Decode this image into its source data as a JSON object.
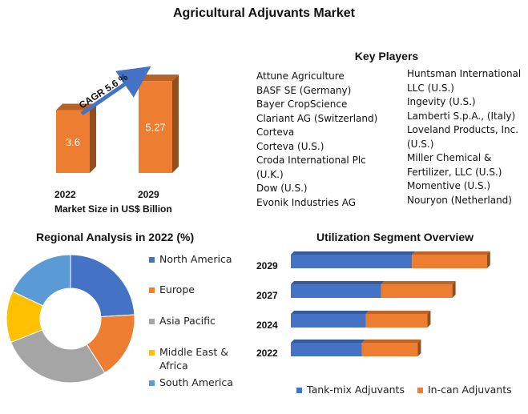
{
  "title": "Agricultural Adjuvants Market",
  "market_size": {
    "categories": [
      "2022",
      "2029"
    ],
    "values": [
      3.6,
      5.27
    ],
    "value_labels": [
      "3.6",
      "5.27"
    ],
    "cagr_label": "CAGR 5.6 %",
    "xlabel": "Market Size in US$ Billion",
    "color": "#ed7d31"
  },
  "key_players": {
    "title": "Key Players",
    "column1": [
      "Attune Agriculture",
      "BASF SE (Germany)",
      "Bayer CropScience",
      "Clariant AG (Switzerland)",
      "Corteva",
      "Corteva (U.S.)",
      "Croda International Plc",
      "(U.K.)",
      "Dow (U.S.)",
      "Evonik Industries AG"
    ],
    "column2": [
      "Huntsman International",
      "LLC (U.S.)",
      "Ingevity (U.S.)",
      "Lamberti S.p.A., (Italy)",
      "Loveland Products, Inc.",
      "(U.S.)",
      "Miller Chemical &",
      "Fertilizer, LLC (U.S.)",
      "Momentive (U.S.)",
      "Nouryon (Netherland)"
    ]
  },
  "chart_data": [
    {
      "type": "bar",
      "title": "",
      "categories": [
        "2022",
        "2029"
      ],
      "values": [
        3.6,
        5.27
      ],
      "xlabel": "Market Size in US$ Billion",
      "ylabel": "",
      "ylim": [
        0,
        6
      ],
      "grid": false
    },
    {
      "type": "pie",
      "title": "Regional Analysis in 2022 (%)",
      "labels": [
        "North America",
        "Europe",
        "Asia Pacific",
        "Middle East & Africa",
        "South America"
      ],
      "values": [
        24,
        17,
        28,
        13,
        18
      ],
      "colors": [
        "#4472c4",
        "#ed7d31",
        "#a5a5a5",
        "#ffc000",
        "#5b9bd5"
      ],
      "donut": true,
      "legend": "right"
    },
    {
      "type": "bar",
      "title": "Utilization Segment Overview",
      "orientation": "horizontal",
      "stacked": true,
      "categories": [
        "2029",
        "2027",
        "2024",
        "2022"
      ],
      "series": [
        {
          "name": "Tank-mix Adjuvants",
          "values": [
            3.15,
            2.35,
            1.95,
            1.85
          ],
          "color": "#4472c4"
        },
        {
          "name": "In-can Adjuvants",
          "values": [
            1.95,
            1.85,
            1.6,
            1.45
          ],
          "color": "#ed7d31"
        }
      ],
      "legend": "bottom",
      "grid": false
    }
  ],
  "regional": {
    "title": "Regional Analysis in 2022 (%)",
    "legend": [
      {
        "label": "North America",
        "color": "#4472c4"
      },
      {
        "label": "Europe",
        "color": "#ed7d31"
      },
      {
        "label": "Asia Pacific",
        "color": "#a5a5a5"
      },
      {
        "label": "Middle East &",
        "label2": "Africa",
        "color": "#ffc000"
      },
      {
        "label": "South America",
        "color": "#5b9bd5"
      }
    ]
  },
  "utilization": {
    "title": "Utilization Segment Overview",
    "years": [
      "2029",
      "2027",
      "2024",
      "2022"
    ],
    "legend": [
      {
        "label": "Tank-mix Adjuvants",
        "color": "#4472c4"
      },
      {
        "label": "In-can Adjuvants",
        "color": "#ed7d31"
      }
    ]
  }
}
